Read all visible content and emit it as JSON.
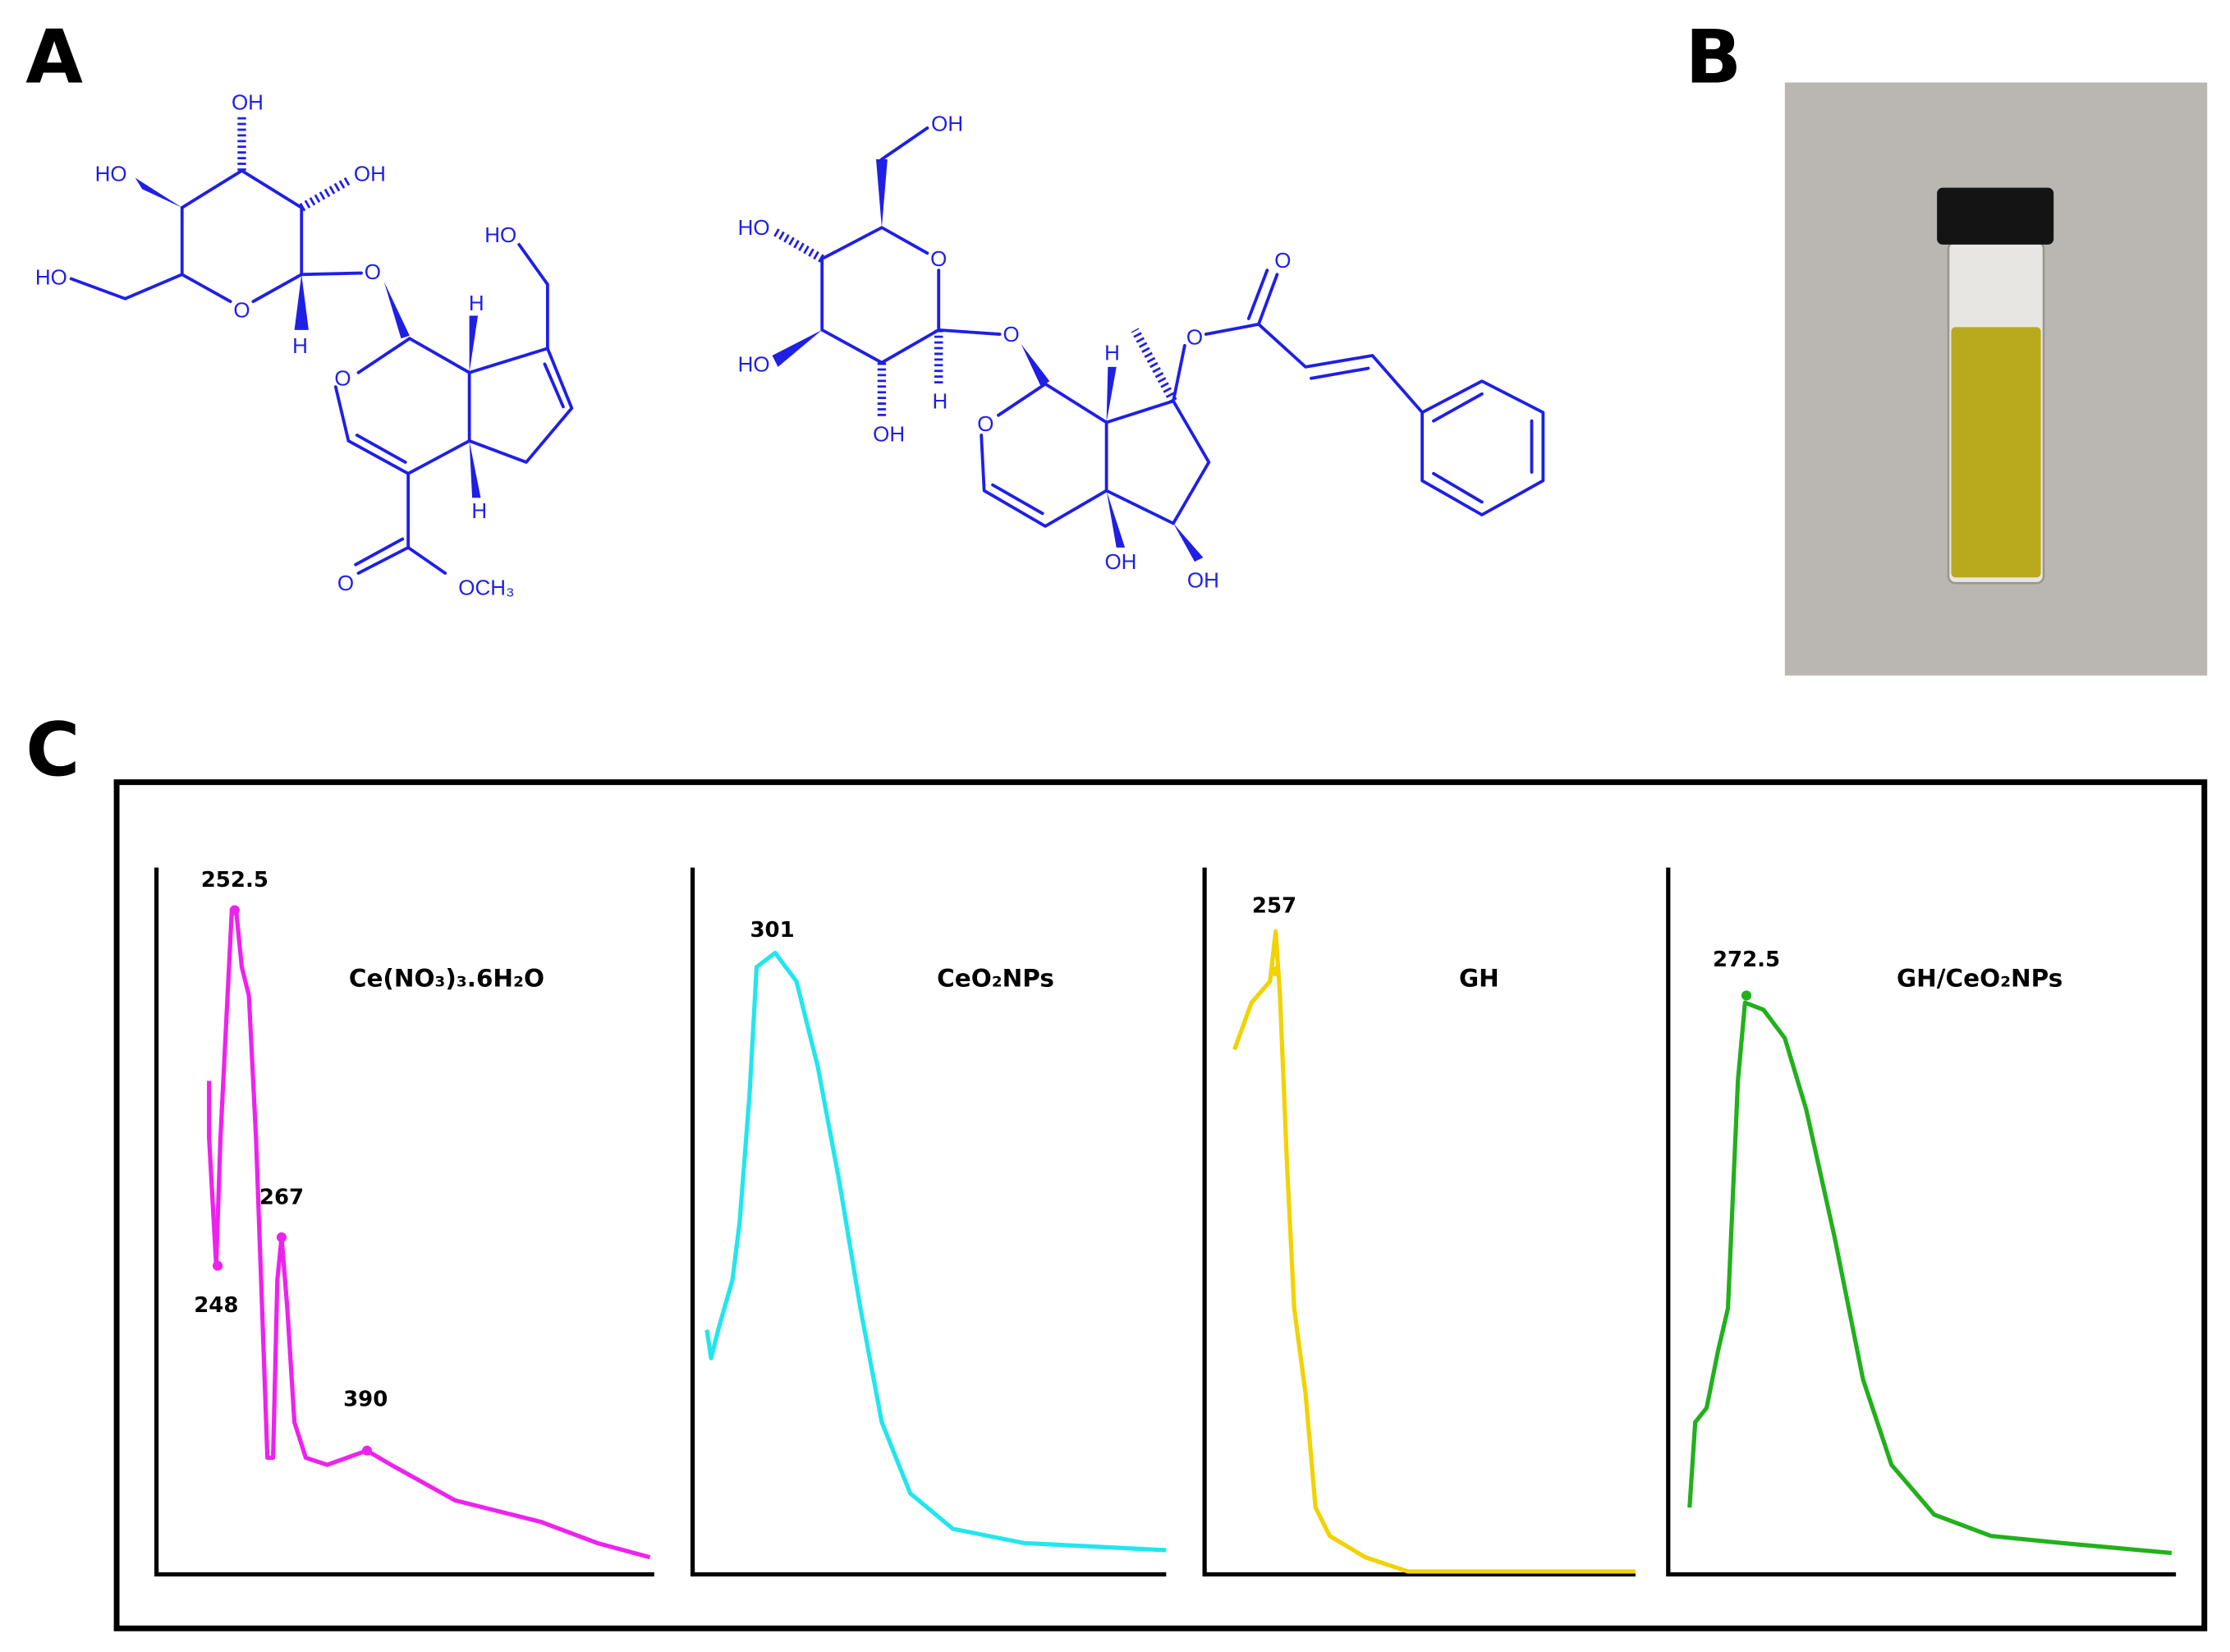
{
  "panel_a": {
    "label": "A",
    "molecule_1": {
      "atoms": [
        "OH",
        "HO",
        "OH",
        "HO",
        "O",
        "H",
        "O",
        "HO",
        "H",
        "O",
        "H",
        "O",
        "OCH₃"
      ]
    },
    "molecule_2": {
      "atoms": [
        "OH",
        "HO",
        "O",
        "O",
        "HO",
        "OH",
        "H",
        "H",
        "O",
        "O",
        "O",
        "OH",
        "OH"
      ]
    }
  },
  "panel_b": {
    "label": "B"
  },
  "panel_c": {
    "label": "C",
    "spectra": [
      {
        "name": "Ce(NO₃)₃.6H₂O",
        "peaks": [
          252.5,
          248,
          267,
          390
        ]
      },
      {
        "name": "CeO₂NPs",
        "peaks": [
          301
        ]
      },
      {
        "name": "GH",
        "peaks": [
          257
        ]
      },
      {
        "name": "GH/CeO₂NPs",
        "peaks": [
          272.5
        ]
      }
    ]
  }
}
